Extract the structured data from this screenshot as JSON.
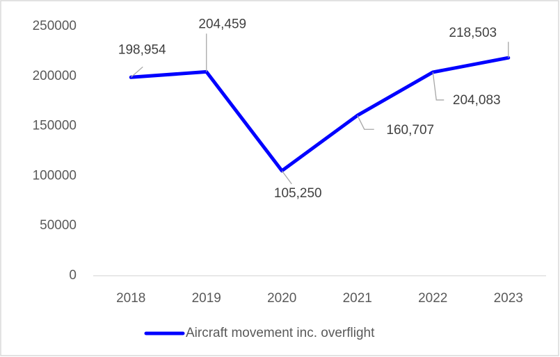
{
  "chart_data": {
    "type": "line",
    "categories": [
      "2018",
      "2019",
      "2020",
      "2021",
      "2022",
      "2023"
    ],
    "series": [
      {
        "name": "Aircraft movement inc. overflight",
        "color": "#0000ff",
        "values": [
          198954,
          204459,
          105250,
          160707,
          204083,
          218503
        ],
        "value_labels": [
          "198,954",
          "204,459",
          "105,250",
          "160,707",
          "204,083",
          "218,503"
        ]
      }
    ],
    "ylim": [
      0,
      250000
    ],
    "yticks": [
      0,
      50000,
      100000,
      150000,
      200000,
      250000
    ],
    "grid": false,
    "legend": "bottom"
  }
}
